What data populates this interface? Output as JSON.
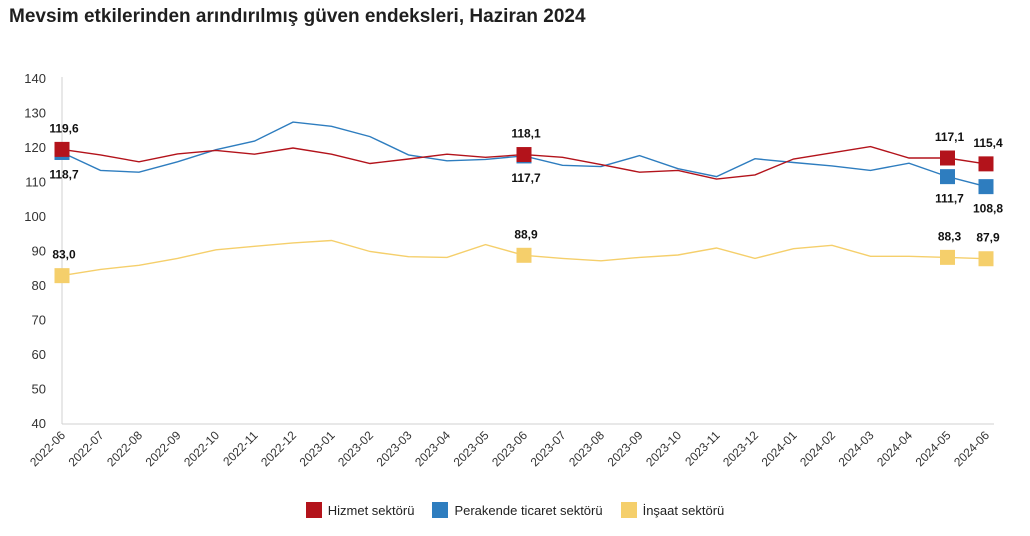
{
  "title": "Mevsim etkilerinden arındırılmış güven endeksleri, Haziran 2024",
  "chart_data": {
    "type": "line",
    "title": "Mevsim etkilerinden arındırılmış güven endeksleri, Haziran 2024",
    "xlabel": "",
    "ylabel": "",
    "ylim": [
      40,
      140
    ],
    "yticks": [
      40,
      50,
      60,
      70,
      80,
      90,
      100,
      110,
      120,
      130,
      140
    ],
    "grid": false,
    "legend_position": "bottom",
    "categories": [
      "2022-06",
      "2022-07",
      "2022-08",
      "2022-09",
      "2022-10",
      "2022-11",
      "2022-12",
      "2023-01",
      "2023-02",
      "2023-03",
      "2023-04",
      "2023-05",
      "2023-06",
      "2023-07",
      "2023-08",
      "2023-09",
      "2023-10",
      "2023-11",
      "2023-12",
      "2024-01",
      "2024-02",
      "2024-03",
      "2024-04",
      "2024-05",
      "2024-06"
    ],
    "series": [
      {
        "name": "Hizmet sektörü",
        "color": "#b3131b",
        "values": [
          119.6,
          118.0,
          116.0,
          118.3,
          119.3,
          118.2,
          120.0,
          118.2,
          115.5,
          116.8,
          118.2,
          117.3,
          118.1,
          117.3,
          115.2,
          113.0,
          113.5,
          111.0,
          112.2,
          116.8,
          118.6,
          120.4,
          117.1,
          117.1,
          115.4
        ],
        "labels": [
          {
            "index": 0,
            "text": "119,6",
            "pos": "above"
          },
          {
            "index": 12,
            "text": "118,1",
            "pos": "above"
          },
          {
            "index": 23,
            "text": "117,1",
            "pos": "above"
          },
          {
            "index": 24,
            "text": "115,4",
            "pos": "above"
          }
        ]
      },
      {
        "name": "Perakende ticaret sektörü",
        "color": "#2e7dbf",
        "values": [
          118.7,
          113.5,
          113.0,
          116.0,
          119.5,
          122.0,
          127.5,
          126.3,
          123.3,
          118.0,
          116.3,
          116.7,
          117.7,
          115.0,
          114.6,
          117.8,
          114.0,
          111.7,
          116.9,
          115.8,
          114.8,
          113.5,
          115.6,
          111.7,
          108.8
        ],
        "labels": [
          {
            "index": 0,
            "text": "118,7",
            "pos": "below"
          },
          {
            "index": 12,
            "text": "117,7",
            "pos": "below"
          },
          {
            "index": 23,
            "text": "111,7",
            "pos": "below"
          },
          {
            "index": 24,
            "text": "108,8",
            "pos": "below"
          }
        ]
      },
      {
        "name": "İnşaat sektörü",
        "color": "#f5cf6b",
        "values": [
          83.0,
          84.8,
          86.0,
          88.0,
          90.5,
          91.5,
          92.5,
          93.2,
          90.0,
          88.5,
          88.3,
          92.0,
          88.9,
          88.0,
          87.3,
          88.3,
          89.0,
          91.0,
          88.0,
          90.8,
          91.8,
          88.6,
          88.6,
          88.3,
          87.9
        ],
        "labels": [
          {
            "index": 0,
            "text": "83,0",
            "pos": "above"
          },
          {
            "index": 12,
            "text": "88,9",
            "pos": "above"
          },
          {
            "index": 23,
            "text": "88,3",
            "pos": "above"
          },
          {
            "index": 24,
            "text": "87,9",
            "pos": "above"
          }
        ]
      }
    ]
  }
}
